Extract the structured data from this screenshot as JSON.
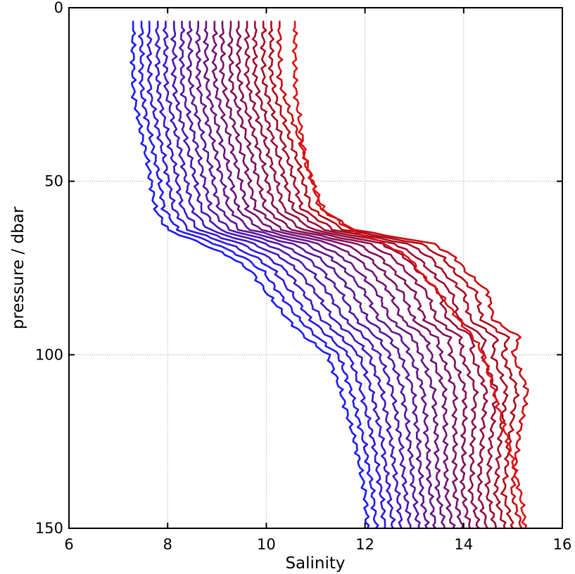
{
  "chart_data": {
    "type": "line",
    "title": "",
    "xlabel": "Salinity",
    "ylabel": "pressure / dbar",
    "xlim": [
      6,
      16
    ],
    "ylim": [
      150,
      0
    ],
    "y_inverted": true,
    "grid": true,
    "legend": "none",
    "x_ticks": [
      "6",
      "8",
      "10",
      "12",
      "14",
      "16"
    ],
    "y_ticks": [
      "0",
      "50",
      "100",
      "150"
    ],
    "colormap": {
      "start": "#1a1aff",
      "end": "#e01010"
    },
    "series_count": 20,
    "pressure": [
      4,
      20,
      25,
      35,
      45,
      58,
      64,
      68,
      72,
      76,
      82,
      90,
      95,
      100,
      110,
      125,
      140,
      150
    ],
    "series": [
      {
        "color": "#1a1aff",
        "values": [
          7.3,
          7.3,
          7.31,
          7.45,
          7.6,
          7.75,
          8.0,
          8.7,
          9.3,
          9.7,
          10.0,
          10.45,
          10.8,
          11.25,
          11.5,
          11.8,
          12.0,
          12.05
        ]
      },
      {
        "color": "#2319f0",
        "values": [
          7.47,
          7.47,
          7.48,
          7.62,
          7.77,
          7.93,
          8.21,
          8.96,
          9.55,
          9.94,
          10.25,
          10.68,
          11.04,
          11.46,
          11.71,
          11.98,
          12.16,
          12.22
        ]
      },
      {
        "color": "#2b18e2",
        "values": [
          7.63,
          7.63,
          7.65,
          7.8,
          7.95,
          8.12,
          8.42,
          9.22,
          9.8,
          10.18,
          10.5,
          10.91,
          11.28,
          11.67,
          11.92,
          12.17,
          12.33,
          12.4
        ]
      },
      {
        "color": "#3417d4",
        "values": [
          7.8,
          7.8,
          7.82,
          7.97,
          8.13,
          8.3,
          8.63,
          9.48,
          10.05,
          10.42,
          10.75,
          11.14,
          11.52,
          11.88,
          12.13,
          12.35,
          12.49,
          12.57
        ]
      },
      {
        "color": "#3d16c7",
        "values": [
          7.96,
          7.96,
          7.99,
          8.15,
          8.31,
          8.49,
          8.84,
          9.74,
          10.31,
          10.66,
          11.0,
          11.37,
          11.77,
          12.08,
          12.34,
          12.53,
          12.66,
          12.74
        ]
      },
      {
        "color": "#4515b9",
        "values": [
          8.13,
          8.13,
          8.15,
          8.32,
          8.49,
          8.68,
          9.05,
          10.0,
          10.56,
          10.91,
          11.25,
          11.6,
          12.01,
          12.29,
          12.55,
          12.72,
          12.82,
          12.92
        ]
      },
      {
        "color": "#4e14ab",
        "values": [
          8.29,
          8.29,
          8.32,
          8.5,
          8.67,
          8.86,
          9.26,
          10.26,
          10.81,
          11.15,
          11.5,
          11.83,
          12.25,
          12.5,
          12.76,
          12.9,
          12.99,
          13.09
        ]
      },
      {
        "color": "#57139d",
        "values": [
          8.45,
          8.45,
          8.49,
          8.67,
          8.85,
          9.05,
          9.47,
          10.52,
          11.06,
          11.39,
          11.75,
          12.06,
          12.49,
          12.71,
          12.97,
          13.08,
          13.15,
          13.26
        ]
      },
      {
        "color": "#60128f",
        "values": [
          8.62,
          8.62,
          8.66,
          8.85,
          9.03,
          9.24,
          9.68,
          10.78,
          11.31,
          11.63,
          12.0,
          12.29,
          12.73,
          12.92,
          13.18,
          13.26,
          13.32,
          13.43
        ]
      },
      {
        "color": "#681182",
        "values": [
          8.78,
          8.78,
          8.83,
          9.02,
          9.21,
          9.42,
          9.89,
          11.04,
          11.56,
          11.87,
          12.25,
          12.52,
          12.97,
          13.13,
          13.39,
          13.45,
          13.48,
          13.61
        ]
      },
      {
        "color": "#711074",
        "values": [
          8.95,
          8.95,
          9.0,
          9.2,
          9.39,
          9.61,
          10.11,
          11.31,
          11.82,
          12.12,
          12.5,
          12.76,
          13.22,
          13.34,
          13.61,
          13.63,
          13.65,
          13.78
        ]
      },
      {
        "color": "#7a0f66",
        "values": [
          9.11,
          9.11,
          9.17,
          9.37,
          9.57,
          9.79,
          10.32,
          11.57,
          12.07,
          12.36,
          12.75,
          12.99,
          13.46,
          13.54,
          13.82,
          13.82,
          13.82,
          13.96
        ]
      },
      {
        "color": "#820e58",
        "values": [
          9.28,
          9.28,
          9.34,
          9.55,
          9.75,
          9.98,
          10.53,
          11.83,
          12.32,
          12.6,
          13.0,
          13.22,
          13.7,
          13.75,
          14.03,
          14.0,
          13.98,
          14.13
        ]
      },
      {
        "color": "#8b0d4a",
        "values": [
          9.44,
          9.44,
          9.5,
          9.72,
          9.93,
          10.17,
          10.74,
          12.09,
          12.57,
          12.84,
          13.25,
          13.45,
          13.94,
          13.96,
          14.24,
          14.18,
          14.15,
          14.31
        ]
      },
      {
        "color": "#940c3d",
        "values": [
          9.61,
          9.61,
          9.67,
          9.9,
          10.11,
          10.35,
          10.95,
          12.35,
          12.82,
          13.08,
          13.5,
          13.68,
          14.18,
          14.17,
          14.45,
          14.37,
          14.31,
          14.48
        ]
      },
      {
        "color": "#9c0b2f",
        "values": [
          9.77,
          9.77,
          9.84,
          10.07,
          10.29,
          10.54,
          11.16,
          12.61,
          13.07,
          13.33,
          13.75,
          13.91,
          14.42,
          14.38,
          14.66,
          14.55,
          14.48,
          14.65
        ]
      },
      {
        "color": "#a50a21",
        "values": [
          9.94,
          9.94,
          10.01,
          10.25,
          10.47,
          10.72,
          11.37,
          12.87,
          13.33,
          13.57,
          14.0,
          14.14,
          14.66,
          14.59,
          14.87,
          14.73,
          14.65,
          14.83
        ]
      },
      {
        "color": "#ae0913",
        "values": [
          10.1,
          10.1,
          10.18,
          10.42,
          10.65,
          10.91,
          11.58,
          13.13,
          13.58,
          13.81,
          14.25,
          14.37,
          14.9,
          14.79,
          15.08,
          14.92,
          14.81,
          15.0
        ]
      },
      {
        "color": "#c80c12",
        "values": [
          10.27,
          10.27,
          10.35,
          10.6,
          10.83,
          11.09,
          11.79,
          13.39,
          13.83,
          14.05,
          14.5,
          14.6,
          15.14,
          15.0,
          15.29,
          15.1,
          14.98,
          15.18
        ]
      },
      {
        "color": "#e01010",
        "values": [
          10.58,
          10.58,
          10.6,
          10.7,
          10.8,
          11.15,
          11.7,
          12.4,
          12.9,
          13.1,
          13.5,
          13.9,
          14.2,
          14.4,
          14.6,
          14.9,
          15.15,
          15.25
        ]
      }
    ]
  }
}
